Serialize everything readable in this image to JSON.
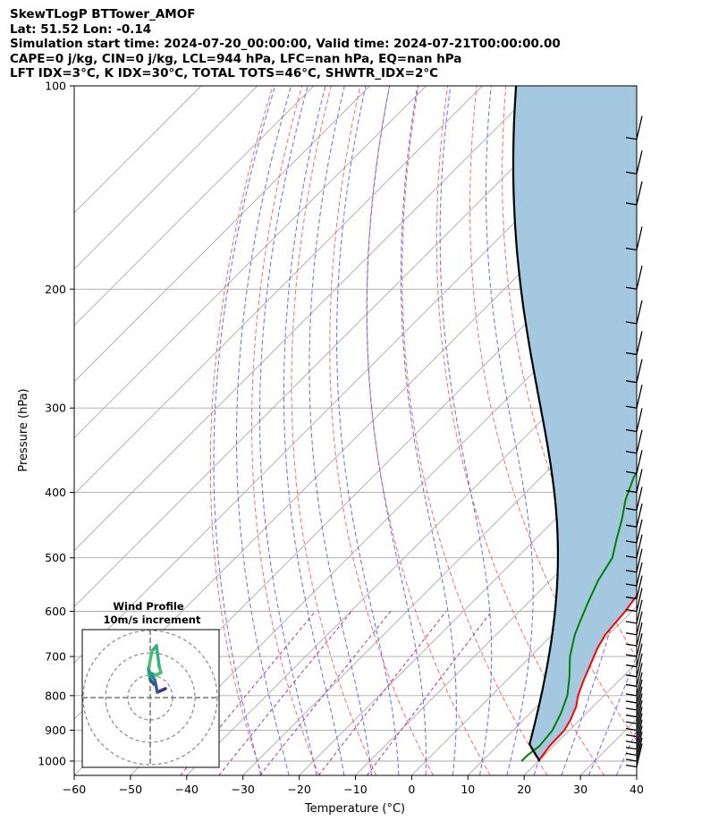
{
  "header": {
    "line1": "SkewTLogP BTTower_AMOF",
    "line2": "Lat: 51.52   Lon: -0.14",
    "line3": "Simulation start time: 2024-07-20_00:00:00, Valid time: 2024-07-21T00:00:00.00",
    "line4": "CAPE=0 j/kg, CIN=0 j/kg, LCL=944 hPa, LFC=nan hPa, EQ=nan hPa",
    "line5": "LFT IDX=3$^\\circ$C, K IDX=30$^\\circ$C, TOTAL TOTS=46$^\\circ$C, SHWTR_IDX=2$^\\circ$C"
  },
  "header_display": {
    "line5": "LFT IDX=3°C, K IDX=30°C, TOTAL TOTS=46°C, SHWTR_IDX=2°C"
  },
  "chart_data": {
    "type": "skew-t log-p",
    "xlabel": "Temperature (°C)",
    "ylabel": "Pressure (hPa)",
    "xlim": [
      -60,
      40
    ],
    "ylim": [
      1050,
      100
    ],
    "yscale": "log",
    "xticks": [
      -60,
      -50,
      -40,
      -30,
      -20,
      -10,
      0,
      10,
      20,
      30,
      40
    ],
    "xtick_labels": [
      "−60",
      "−50",
      "−40",
      "−30",
      "−20",
      "−10",
      "0",
      "10",
      "20",
      "30",
      "40"
    ],
    "yticks": [
      1000,
      900,
      800,
      700,
      600,
      500,
      400,
      300,
      200,
      100
    ],
    "grid": true,
    "colors": {
      "temperature": "#ff0000",
      "dewpoint": "#008000",
      "parcel": "#000000",
      "shade": "#a5c8e1",
      "dry_adiabat": "#ff6666",
      "moist_adiabat": "#6666ff",
      "mixing_ratio": "#aa33aa",
      "isotherm": "#aaaaaa"
    },
    "temperature": {
      "pressure": [
        1000,
        950,
        900,
        870,
        830,
        800,
        760,
        720,
        680,
        650,
        600,
        550,
        500,
        450,
        400,
        370,
        345,
        320,
        300,
        280,
        260,
        250,
        235,
        220,
        210,
        200,
        185,
        170,
        160,
        150,
        140,
        130,
        120,
        110,
        105,
        100
      ],
      "temp": [
        20,
        19.3,
        19.1,
        18.4,
        17,
        15.4,
        13.7,
        12.1,
        10.4,
        9.4,
        8.8,
        7.6,
        6.2,
        4,
        0.5,
        -1.5,
        -3.5,
        -7,
        -10.5,
        -14.5,
        -18.5,
        -20,
        -21.5,
        -23.5,
        -25.5,
        -27.5,
        -30.5,
        -33,
        -35,
        -37,
        -39.5,
        -42,
        -44.8,
        -47.8,
        -49.5,
        -51
      ]
    },
    "dewpoint": {
      "pressure": [
        1000,
        980,
        950,
        900,
        850,
        800,
        750,
        700,
        650,
        620,
        580,
        540,
        500,
        470,
        440,
        410,
        380,
        360,
        340,
        320,
        300,
        280,
        265,
        250,
        235,
        220,
        210,
        200,
        190,
        180,
        170,
        160,
        150,
        140,
        130,
        120,
        110,
        100
      ],
      "dewpoint": [
        17,
        17,
        17.5,
        17,
        15.5,
        13.5,
        10.5,
        7,
        4,
        2.5,
        0.5,
        -1.5,
        -3,
        -5.5,
        -8,
        -11,
        -13.5,
        -14.5,
        -17,
        -18.5,
        -20.5,
        -22.5,
        -23.5,
        -27,
        -29.5,
        -33,
        -35.5,
        -38,
        -42,
        -43,
        -42.5,
        -44.3,
        -46.3,
        -48.5,
        -51,
        -53.5,
        -56,
        -58.5
      ]
    },
    "parcel_profile": {
      "surface_pressure": 1000,
      "surface_temperature": 20.2,
      "lcl_pressure": 944
    },
    "wind_barbs_pressure": [
      1020,
      1000,
      980,
      960,
      940,
      920,
      900,
      880,
      860,
      840,
      820,
      800,
      775,
      750,
      725,
      700,
      675,
      650,
      625,
      600,
      575,
      550,
      525,
      500,
      475,
      450,
      425,
      400,
      375,
      350,
      325,
      300,
      275,
      250,
      225,
      200,
      175,
      150,
      135,
      120
    ],
    "inset": {
      "title": "Wind Profile",
      "subtitle": "10m/s increment",
      "rings_ms": [
        10,
        20,
        30
      ]
    }
  }
}
